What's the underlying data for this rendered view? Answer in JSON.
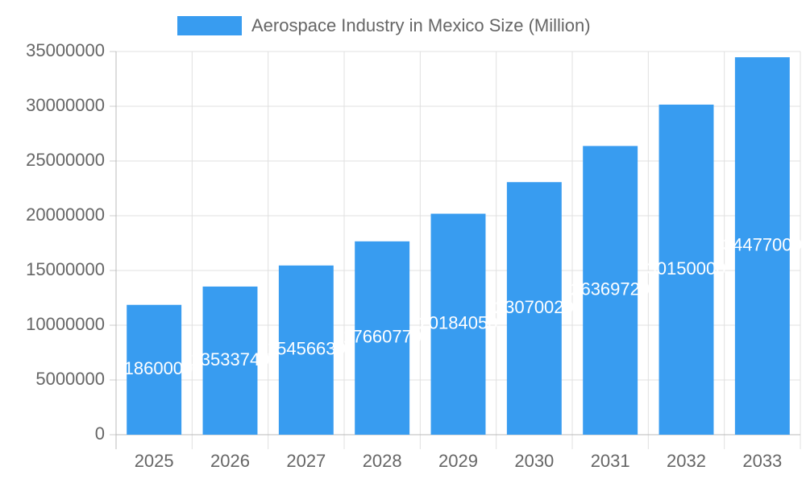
{
  "chart_data": {
    "type": "bar",
    "categories": [
      "2025",
      "2026",
      "2027",
      "2028",
      "2029",
      "2030",
      "2031",
      "2032",
      "2033"
    ],
    "series": [
      {
        "name": "Aerospace Industry in Mexico Size (Million)",
        "color": "#389cf0",
        "values": [
          11860000,
          13533740,
          15456630,
          17660770,
          20184050,
          23070020,
          26369720,
          30150000,
          34477000
        ]
      }
    ],
    "ylim": [
      0,
      35000000
    ],
    "yticks": [
      0,
      5000000,
      10000000,
      15000000,
      20000000,
      25000000,
      30000000,
      35000000
    ],
    "grid": true,
    "legend": "top"
  }
}
